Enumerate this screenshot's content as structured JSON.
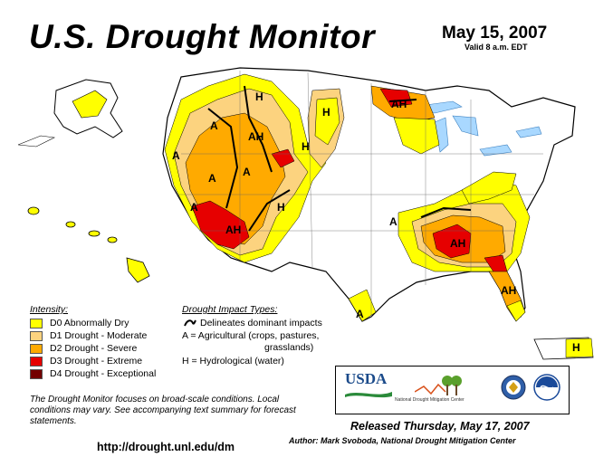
{
  "header": {
    "title": "U.S. Drought Monitor",
    "date": "May 15, 2007",
    "valid": "Valid 8 a.m. EDT"
  },
  "colors": {
    "d0": "#ffff00",
    "d1": "#fcd37f",
    "d2": "#ffaa00",
    "d3": "#e60000",
    "d4": "#730000",
    "water": "#a9d8ff",
    "impact_line": "#000000"
  },
  "legend": {
    "intensity_title": "Intensity:",
    "items": [
      {
        "label": "D0 Abnormally Dry"
      },
      {
        "label": "D1 Drought - Moderate"
      },
      {
        "label": "D2 Drought - Severe"
      },
      {
        "label": "D3 Drought - Extreme"
      },
      {
        "label": "D4 Drought - Exceptional"
      }
    ]
  },
  "impacts": {
    "title": "Drought Impact Types:",
    "line_label": "Delineates dominant impacts",
    "agricultural_1": "A = Agricultural (crops, pastures,",
    "agricultural_2": "grasslands)",
    "hydrological": "H = Hydrological (water)"
  },
  "map_labels": {
    "a": "A",
    "h": "H",
    "ah": "AH"
  },
  "note": "The Drought Monitor focuses on broad-scale conditions. Local conditions may vary. See accompanying text summary for forecast statements.",
  "url": "http://drought.unl.edu/dm",
  "footer": {
    "released": "Released Thursday, May 17, 2007",
    "author": "Author: Mark Svoboda, National Drought Mitigation Center"
  },
  "logos": {
    "usda": "USDA",
    "ndmc": "National Drought Mitigation Center"
  }
}
